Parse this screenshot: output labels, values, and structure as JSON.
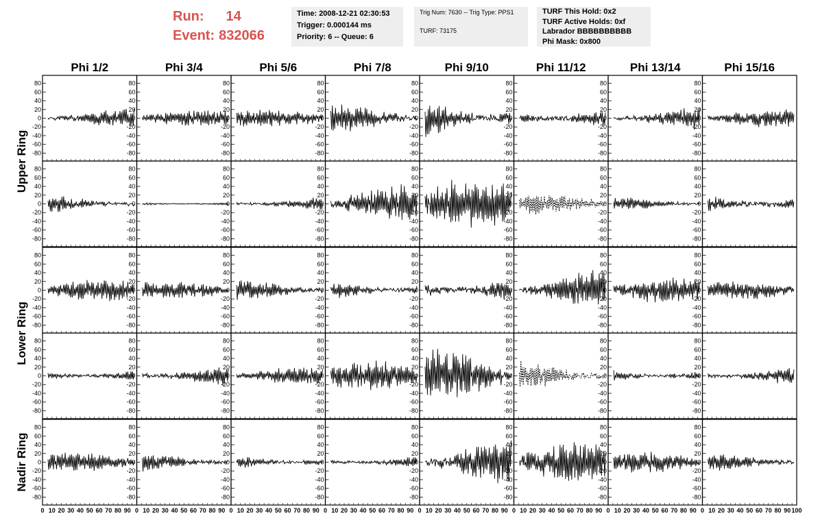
{
  "header": {
    "run_label": "Run:",
    "run_value": "14",
    "event_label": "Event:",
    "event_value": "832066",
    "accent_color": "#d9534f"
  },
  "time_panel": {
    "time": "Time: 2008-12-21 02:30:53",
    "trigger": "Trigger: 0.000144 ms",
    "priority": "Priority: 6 -- Queue: 6"
  },
  "trig_panel": {
    "trig_line": "Trig Num: 7630 -- Trig Type: PPS1",
    "turf_line": "TURF: 73175"
  },
  "turf_panel": {
    "hold": "TURF This Hold: 0x2",
    "active": "TURF Active Holds: 0xf",
    "labrador": "Labrador BBBBBBBBBB",
    "phi_mask": "Phi Mask: 0x800"
  },
  "chart_data": {
    "type": "line",
    "columns": [
      "Phi 1/2",
      "Phi 3/4",
      "Phi 5/6",
      "Phi 7/8",
      "Phi 9/10",
      "Phi 11/12",
      "Phi 13/14",
      "Phi 15/16"
    ],
    "rows": [
      "Upper Ring",
      "Lower Ring",
      "Nadir Ring"
    ],
    "subplots_per_column": 5,
    "ylim": [
      -95,
      95
    ],
    "yticks": [
      80,
      60,
      40,
      20,
      0,
      -20,
      -40,
      -60,
      -80
    ],
    "xlim": [
      0,
      100
    ],
    "xticks": [
      "0",
      "10",
      "20",
      "30",
      "40",
      "50",
      "60",
      "70",
      "80",
      "90",
      "100"
    ],
    "waveforms": [
      [
        {
          "amp": 22,
          "seed": 11
        },
        {
          "amp": 18,
          "seed": 12
        },
        {
          "amp": 20,
          "seed": 13
        },
        {
          "amp": 28,
          "seed": 14
        },
        {
          "amp": 45,
          "seed": 15
        },
        {
          "amp": 30,
          "seed": 16
        },
        {
          "amp": 24,
          "seed": 17
        },
        {
          "amp": 20,
          "seed": 18
        }
      ],
      [
        {
          "amp": 22,
          "seed": 21
        },
        {
          "amp": 5,
          "seed": 22
        },
        {
          "amp": 16,
          "seed": 23
        },
        {
          "amp": 42,
          "seed": 24
        },
        {
          "amp": 55,
          "seed": 25
        },
        {
          "amp": 22,
          "seed": 26,
          "dashed": true
        },
        {
          "amp": 16,
          "seed": 27
        },
        {
          "amp": 26,
          "seed": 28
        }
      ],
      [
        {
          "amp": 24,
          "seed": 31
        },
        {
          "amp": 20,
          "seed": 32
        },
        {
          "amp": 22,
          "seed": 33
        },
        {
          "amp": 26,
          "seed": 34
        },
        {
          "amp": 35,
          "seed": 35
        },
        {
          "amp": 48,
          "seed": 36
        },
        {
          "amp": 30,
          "seed": 37
        },
        {
          "amp": 20,
          "seed": 38
        }
      ],
      [
        {
          "amp": 18,
          "seed": 41
        },
        {
          "amp": 22,
          "seed": 42
        },
        {
          "amp": 20,
          "seed": 43
        },
        {
          "amp": 32,
          "seed": 44
        },
        {
          "amp": 55,
          "seed": 45
        },
        {
          "amp": 35,
          "seed": 46,
          "dashed": true
        },
        {
          "amp": 18,
          "seed": 47
        },
        {
          "amp": 22,
          "seed": 48
        }
      ],
      [
        {
          "amp": 22,
          "seed": 51
        },
        {
          "amp": 20,
          "seed": 52
        },
        {
          "amp": 20,
          "seed": 53
        },
        {
          "amp": 14,
          "seed": 54
        },
        {
          "amp": 48,
          "seed": 55
        },
        {
          "amp": 45,
          "seed": 56
        },
        {
          "amp": 22,
          "seed": 57
        },
        {
          "amp": 18,
          "seed": 58
        }
      ]
    ]
  }
}
